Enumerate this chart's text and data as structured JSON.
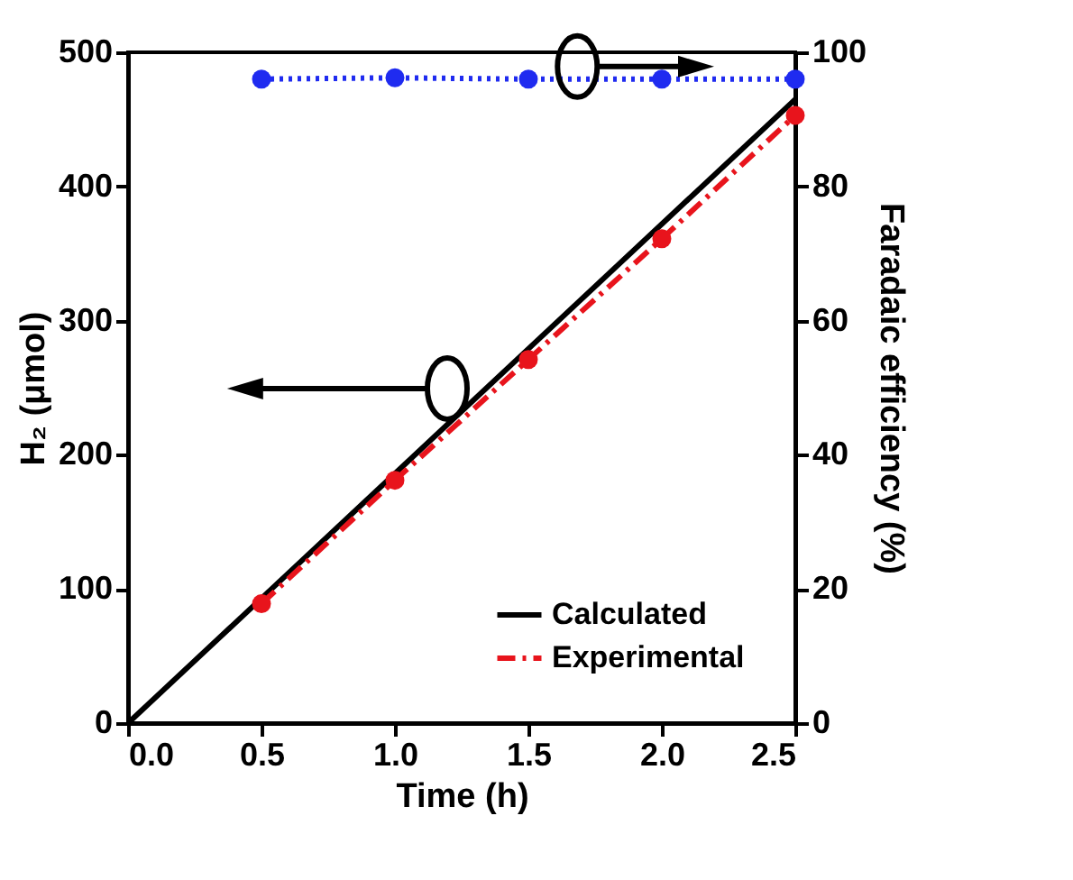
{
  "chart_data": {
    "type": "line",
    "xlabel": "Time (h)",
    "ylabel": "H₂ (μmol)",
    "y2label": "Faradaic efficiency (%)",
    "x": [
      0,
      0.5,
      1.0,
      1.5,
      2.0,
      2.5
    ],
    "series": [
      {
        "name": "Calculated",
        "color": "#000000",
        "values": [
          0,
          93,
          186,
          279,
          372,
          465
        ],
        "marker": "none",
        "line_style": "solid"
      },
      {
        "name": "Experimental",
        "color": "#e8141c",
        "values": [
          null,
          89,
          181,
          271,
          361,
          453
        ],
        "marker": "circle",
        "line_style": "dashed"
      },
      {
        "color": "#1f2bf0",
        "values": [
          null,
          96,
          96.2,
          96,
          96,
          96
        ],
        "axis": "y2",
        "marker": "circle",
        "line_style": "dotted"
      }
    ],
    "xlim": [
      0,
      2.5
    ],
    "xticks": [
      {
        "value": 0,
        "label": "0.0"
      },
      {
        "value": 0.5,
        "label": "0.5"
      },
      {
        "value": 1,
        "label": "1.0"
      },
      {
        "value": 1.5,
        "label": "1.5"
      },
      {
        "value": 2,
        "label": "2.0"
      },
      {
        "value": 2.5,
        "label": "2.5"
      }
    ],
    "ylim": [
      0,
      500
    ],
    "yticks": [
      0,
      100,
      200,
      300,
      400,
      500
    ],
    "y2lim": [
      0,
      100
    ],
    "y2ticks": [
      0,
      20,
      40,
      60,
      80,
      100
    ],
    "legend": "bottom right",
    "grid": false
  }
}
